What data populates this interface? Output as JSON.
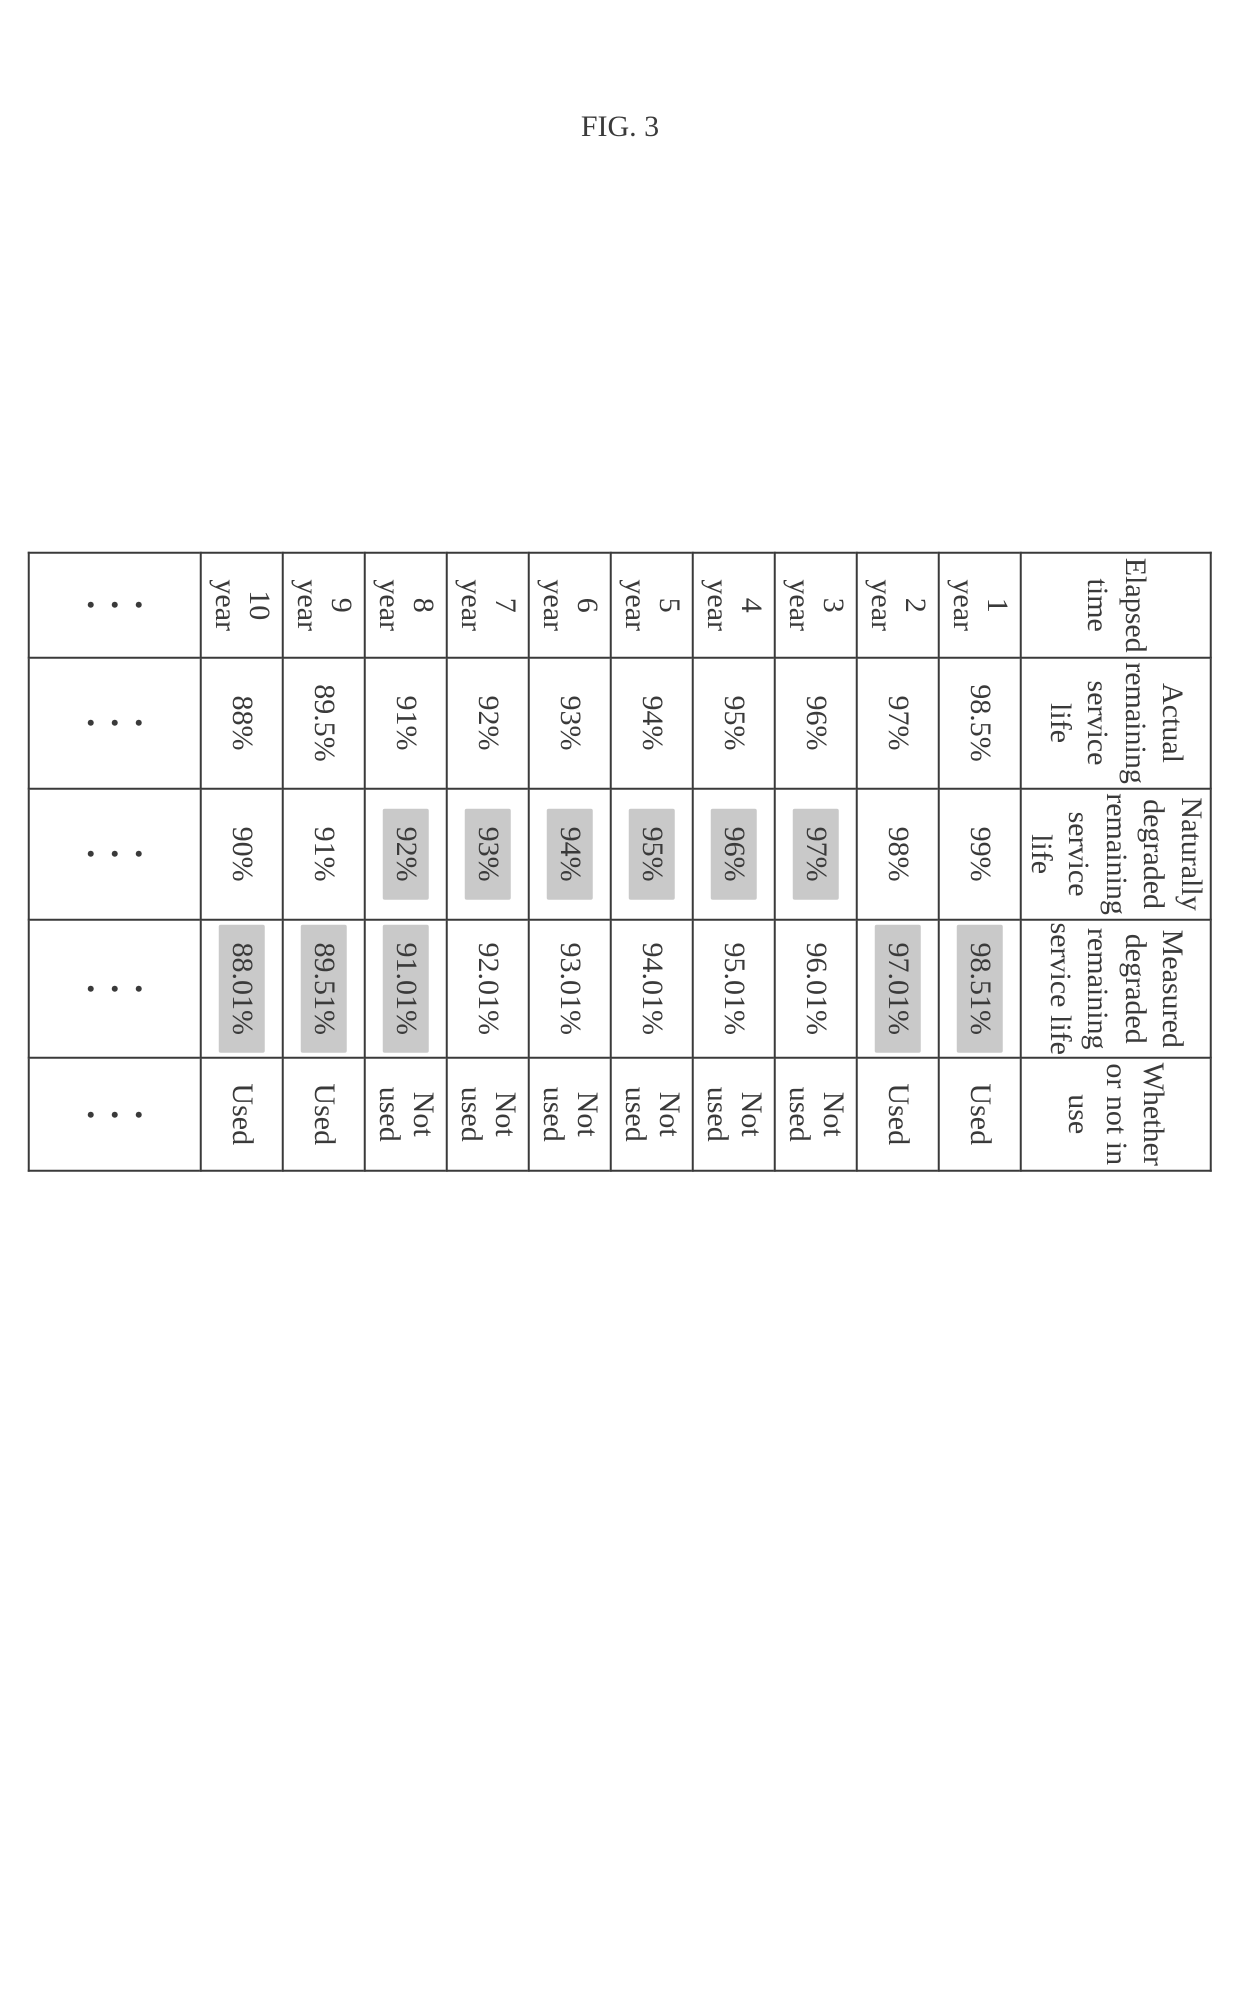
{
  "figure_label": "FIG. 3",
  "shaded_bg": "#c9c9c9",
  "columns": [
    {
      "key": "elapsed",
      "label": "Elapsed time"
    },
    {
      "key": "actual",
      "label": "Actual remaining\nservice life"
    },
    {
      "key": "natural",
      "label": "Naturally degraded\nremaining service life"
    },
    {
      "key": "measured",
      "label": "Measured degraded\nremaining service life"
    },
    {
      "key": "use",
      "label": "Whether or not in use"
    }
  ],
  "rows": [
    {
      "elapsed": "1 year",
      "actual": "98.5%",
      "natural": "99%",
      "natural_shaded": false,
      "measured": "98.51%",
      "measured_shaded": true,
      "use": "Used"
    },
    {
      "elapsed": "2 year",
      "actual": "97%",
      "natural": "98%",
      "natural_shaded": false,
      "measured": "97.01%",
      "measured_shaded": true,
      "use": "Used"
    },
    {
      "elapsed": "3 year",
      "actual": "96%",
      "natural": "97%",
      "natural_shaded": true,
      "measured": "96.01%",
      "measured_shaded": false,
      "use": "Not used"
    },
    {
      "elapsed": "4 year",
      "actual": "95%",
      "natural": "96%",
      "natural_shaded": true,
      "measured": "95.01%",
      "measured_shaded": false,
      "use": "Not used"
    },
    {
      "elapsed": "5 year",
      "actual": "94%",
      "natural": "95%",
      "natural_shaded": true,
      "measured": "94.01%",
      "measured_shaded": false,
      "use": "Not used"
    },
    {
      "elapsed": "6 year",
      "actual": "93%",
      "natural": "94%",
      "natural_shaded": true,
      "measured": "93.01%",
      "measured_shaded": false,
      "use": "Not used"
    },
    {
      "elapsed": "7 year",
      "actual": "92%",
      "natural": "93%",
      "natural_shaded": true,
      "measured": "92.01%",
      "measured_shaded": false,
      "use": "Not used"
    },
    {
      "elapsed": "8 year",
      "actual": "91%",
      "natural": "92%",
      "natural_shaded": true,
      "measured": "91.01%",
      "measured_shaded": true,
      "use": "Not used"
    },
    {
      "elapsed": "9 year",
      "actual": "89.5%",
      "natural": "91%",
      "natural_shaded": false,
      "measured": "89.51%",
      "measured_shaded": true,
      "use": "Used"
    },
    {
      "elapsed": "10 year",
      "actual": "88%",
      "natural": "90%",
      "natural_shaded": false,
      "measured": "88.01%",
      "measured_shaded": true,
      "use": "Used"
    }
  ]
}
